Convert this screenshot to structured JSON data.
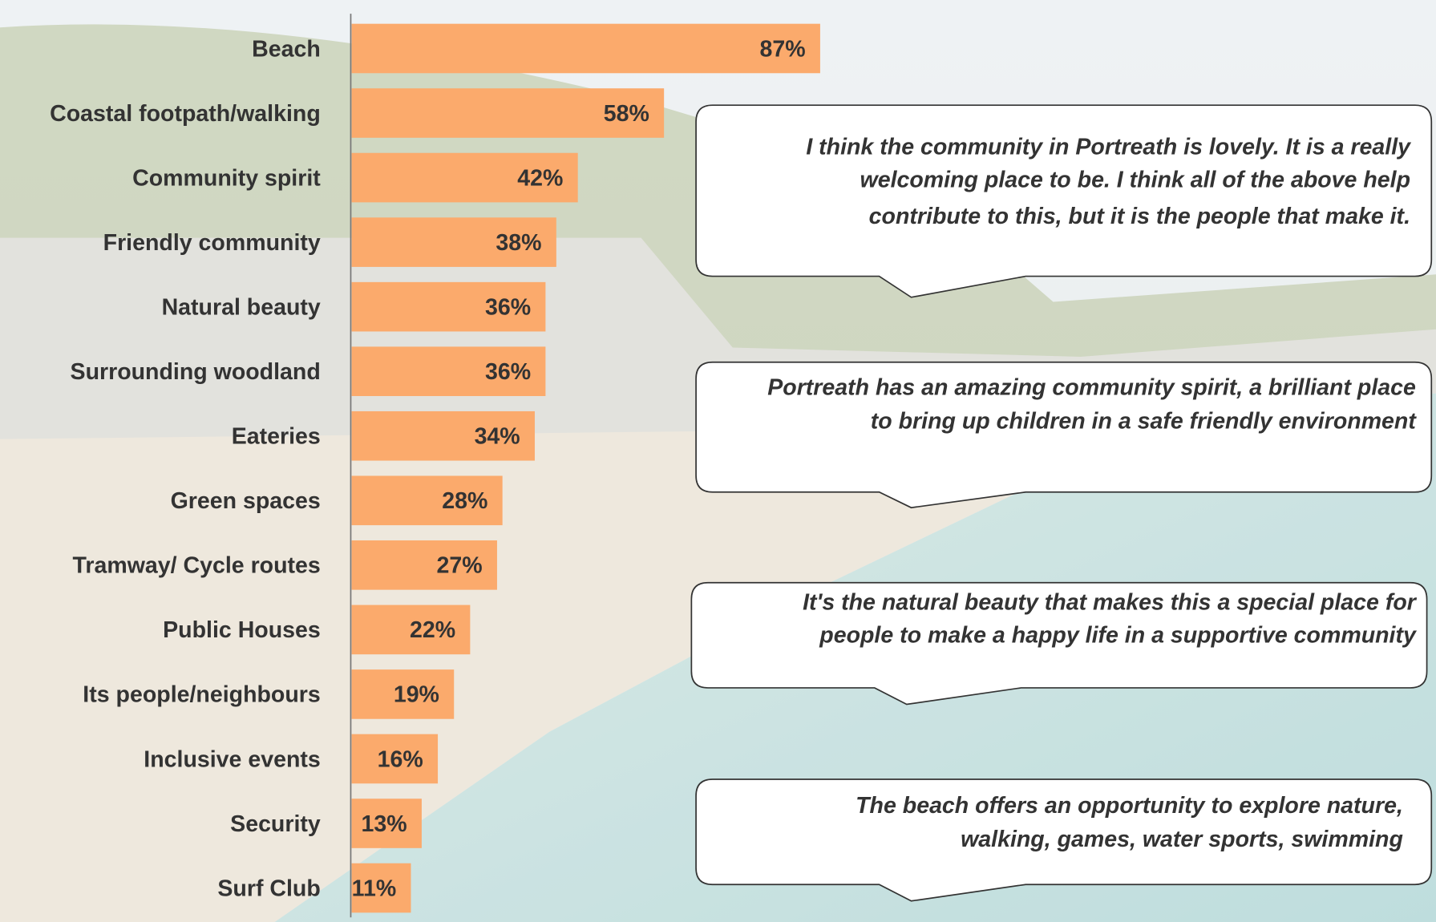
{
  "chart_data": {
    "type": "bar",
    "orientation": "horizontal",
    "categories": [
      "Beach",
      "Coastal footpath/walking",
      "Community spirit",
      "Friendly community",
      "Natural beauty",
      "Surrounding woodland",
      "Eateries",
      "Green spaces",
      "Tramway/ Cycle routes",
      "Public Houses",
      "Its people/neighbours",
      "Inclusive events",
      "Security",
      "Surf Club"
    ],
    "values": [
      87,
      58,
      42,
      38,
      36,
      36,
      34,
      28,
      27,
      22,
      19,
      16,
      13,
      11
    ],
    "value_labels": [
      "87%",
      "58%",
      "42%",
      "38%",
      "36%",
      "36%",
      "34%",
      "28%",
      "27%",
      "22%",
      "19%",
      "16%",
      "13%",
      "11%"
    ],
    "color": "#fbaa6c",
    "xlim": [
      0,
      100
    ],
    "annotations": [
      [
        "I think the community in Portreath is lovely. It is a really",
        "welcoming place to be. I think all of the above help",
        "contribute to this, but it is the people that make it."
      ],
      [
        "Portreath has an amazing community spirit, a brilliant place",
        "to bring up children in a safe friendly environment"
      ],
      [
        "It's the natural beauty that makes this a special place for",
        "people to make a happy life in a supportive community"
      ],
      [
        "The beach offers an opportunity to explore nature,",
        "walking, games, water sports, swimming"
      ]
    ]
  }
}
